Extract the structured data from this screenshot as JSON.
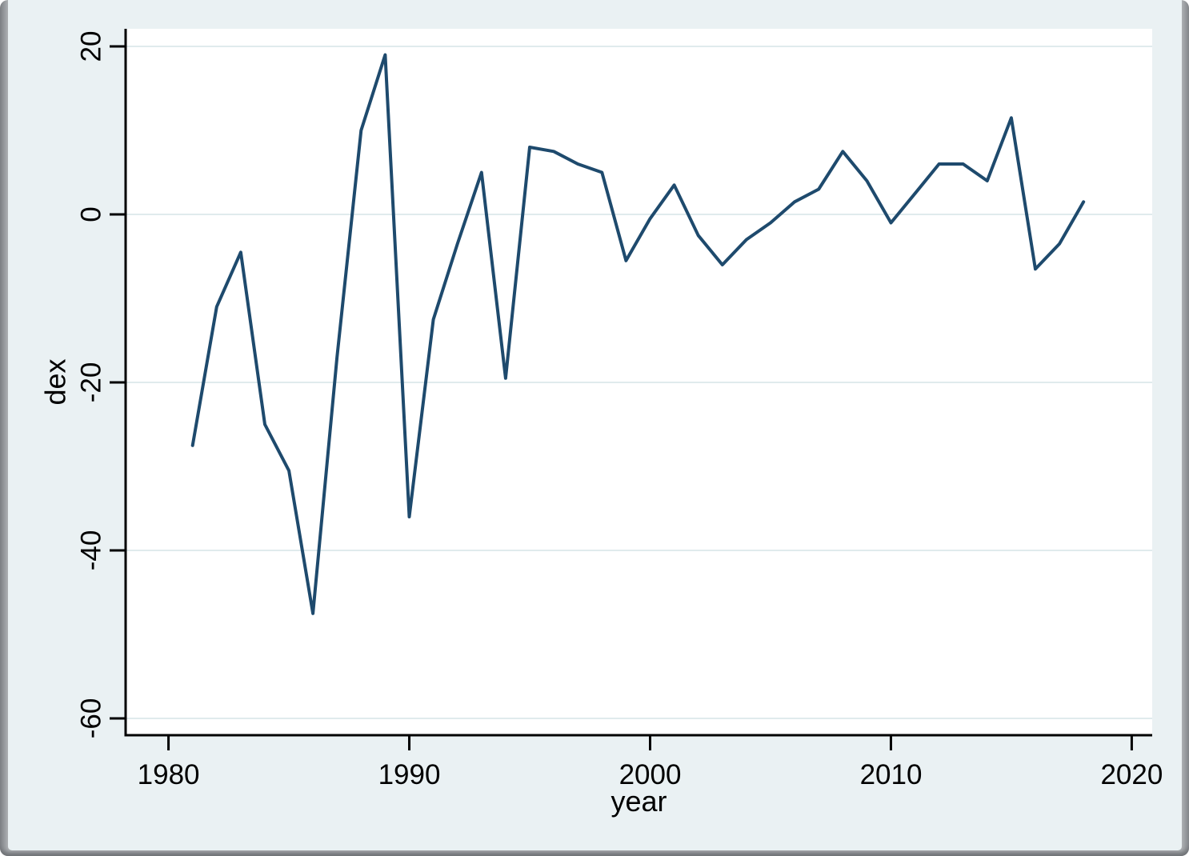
{
  "chart_data": {
    "type": "line",
    "title": "",
    "xlabel": "year",
    "ylabel": "dex",
    "x": [
      1981,
      1982,
      1983,
      1984,
      1985,
      1986,
      1987,
      1988,
      1989,
      1990,
      1991,
      1992,
      1993,
      1994,
      1995,
      1996,
      1997,
      1998,
      1999,
      2000,
      2001,
      2002,
      2003,
      2004,
      2005,
      2006,
      2007,
      2008,
      2009,
      2010,
      2011,
      2012,
      2013,
      2014,
      2015,
      2016,
      2017,
      2018
    ],
    "values": [
      -27.5,
      -11,
      -4.5,
      -25,
      -30.5,
      -47.5,
      -17,
      10,
      19,
      -36,
      -12.5,
      -3.5,
      5,
      -19.5,
      8,
      7.5,
      6,
      5,
      -5.5,
      -0.5,
      3.5,
      -2.5,
      -6,
      -3,
      -1,
      1.5,
      3,
      7.5,
      4,
      -1,
      2.5,
      6,
      6,
      4,
      11.5,
      -6.5,
      -3.5,
      1.5
    ],
    "x_ticks": [
      1980,
      1990,
      2000,
      2010,
      2020
    ],
    "x_tick_labels": [
      "1980",
      "1990",
      "2000",
      "2010",
      "2020"
    ],
    "y_ticks": [
      20,
      0,
      -20,
      -40,
      -60
    ],
    "y_tick_labels": [
      "20",
      "0",
      "-20",
      "-40",
      "-60"
    ],
    "xlim": [
      1978.22,
      2020.85
    ],
    "ylim": [
      -62.0,
      22.1
    ],
    "grid": true,
    "legend": "none",
    "colors": {
      "line": "#1e4a6d",
      "background": "#eaf1f3",
      "plot_background": "#ffffff",
      "gridline": "#e0ebed",
      "axis": "#000000"
    }
  }
}
